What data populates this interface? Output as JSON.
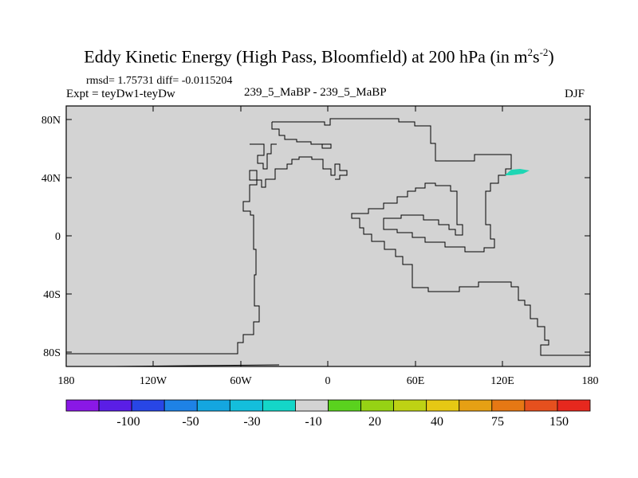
{
  "title": {
    "main": "Eddy Kinetic Energy (High Pass, Bloomfield) at 200 hPa (in m",
    "sup1": "2",
    "mid": "s",
    "sup2": "-2",
    "close": ")"
  },
  "stats": "rmsd= 1.75731 diff= -0.0115204",
  "expt": "Expt = teyDw1-teyDw",
  "case": "239_5_MaBP - 239_5_MaBP",
  "season": "DJF",
  "map": {
    "lat_ticks": [
      "80N",
      "40N",
      "0",
      "40S",
      "80S"
    ],
    "lon_ticks": [
      "180",
      "120W",
      "60W",
      "0",
      "60E",
      "120E",
      "180"
    ],
    "background": "#d3d3d3",
    "anomaly_color": "#1ed6b4"
  },
  "colorbar": {
    "colors": [
      "#8a18e6",
      "#5a1ee6",
      "#2846e6",
      "#1e82e6",
      "#14a6e0",
      "#14bedc",
      "#14d6c8",
      "#d3d3d3",
      "#5ad21e",
      "#96d214",
      "#bed214",
      "#e6c814",
      "#e6a014",
      "#e67814",
      "#e6501e",
      "#e6281e"
    ],
    "labels": [
      "-100",
      "-50",
      "-30",
      "-10",
      "20",
      "40",
      "75",
      "150"
    ]
  }
}
